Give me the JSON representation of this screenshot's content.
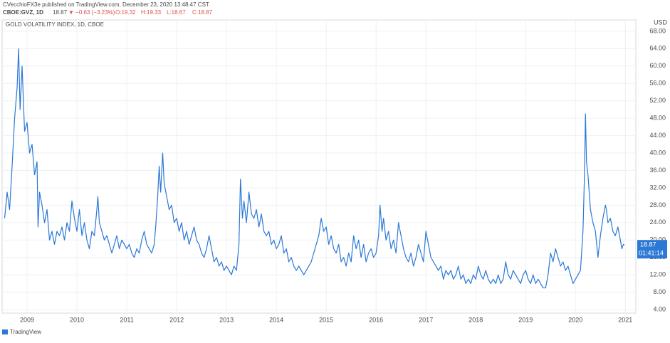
{
  "header": {
    "publisher": "CVecchioFX3e published on TradingView.com, December 23, 2020 13:48:47 CST",
    "symbol": "CBOE:GVZ, 1D",
    "last": "18.87",
    "change": "▼ −0.63 (−3.23%)",
    "open": "O:19.32",
    "high": "H:19.33",
    "low": "L:18.67",
    "close": "C:18.87"
  },
  "footer": {
    "brand": "TradingView"
  },
  "chart_data": {
    "type": "line",
    "title": "GOLD VOLATILITY INDEX, 1D, CBOE",
    "currency": "USD",
    "color": "#2b78d6",
    "grid": true,
    "last_value": 18.87,
    "last_value_label": "18.87",
    "countdown": "01:41:14",
    "xlim": [
      2008.5,
      2021.21
    ],
    "ylim": [
      3.2,
      70.6
    ],
    "xticks": [
      2009,
      2010,
      2011,
      2012,
      2013,
      2014,
      2015,
      2016,
      2017,
      2018,
      2019,
      2020,
      2021
    ],
    "yticks": [
      {
        "value": 4,
        "label": "4.00"
      },
      {
        "value": 8,
        "label": "8.00"
      },
      {
        "value": 12,
        "label": "12.00"
      },
      {
        "value": 16,
        "label": "16.00"
      },
      {
        "value": 20,
        "label": "20.00"
      },
      {
        "value": 24,
        "label": "24.00"
      },
      {
        "value": 28,
        "label": "28.00"
      },
      {
        "value": 32,
        "label": "32.00"
      },
      {
        "value": 36,
        "label": "36.00"
      },
      {
        "value": 40,
        "label": "40.00"
      },
      {
        "value": 44,
        "label": "44.00"
      },
      {
        "value": 48,
        "label": "48.00"
      },
      {
        "value": 52,
        "label": "52.00"
      },
      {
        "value": 56,
        "label": "56.00"
      },
      {
        "value": 60,
        "label": "60.00"
      },
      {
        "value": 64,
        "label": "64.00"
      },
      {
        "value": 68,
        "label": "68.00"
      }
    ],
    "x": [
      2008.55,
      2008.6,
      2008.65,
      2008.7,
      2008.75,
      2008.8,
      2008.83,
      2008.86,
      2008.9,
      2008.95,
      2009.0,
      2009.05,
      2009.1,
      2009.15,
      2009.2,
      2009.22,
      2009.25,
      2009.3,
      2009.35,
      2009.4,
      2009.45,
      2009.5,
      2009.55,
      2009.6,
      2009.65,
      2009.7,
      2009.75,
      2009.8,
      2009.85,
      2009.9,
      2009.95,
      2010.0,
      2010.05,
      2010.1,
      2010.15,
      2010.2,
      2010.25,
      2010.3,
      2010.35,
      2010.4,
      2010.42,
      2010.45,
      2010.5,
      2010.55,
      2010.6,
      2010.65,
      2010.7,
      2010.75,
      2010.8,
      2010.85,
      2010.9,
      2010.95,
      2011.0,
      2011.05,
      2011.1,
      2011.15,
      2011.2,
      2011.25,
      2011.3,
      2011.35,
      2011.4,
      2011.45,
      2011.5,
      2011.55,
      2011.58,
      2011.62,
      2011.65,
      2011.68,
      2011.72,
      2011.75,
      2011.8,
      2011.85,
      2011.9,
      2011.95,
      2012.0,
      2012.05,
      2012.1,
      2012.15,
      2012.2,
      2012.25,
      2012.3,
      2012.35,
      2012.4,
      2012.45,
      2012.5,
      2012.55,
      2012.6,
      2012.65,
      2012.7,
      2012.75,
      2012.8,
      2012.85,
      2012.9,
      2012.95,
      2013.0,
      2013.05,
      2013.1,
      2013.15,
      2013.2,
      2013.25,
      2013.28,
      2013.32,
      2013.35,
      2013.4,
      2013.45,
      2013.5,
      2013.55,
      2013.6,
      2013.65,
      2013.7,
      2013.75,
      2013.8,
      2013.85,
      2013.9,
      2013.95,
      2014.0,
      2014.05,
      2014.1,
      2014.15,
      2014.2,
      2014.25,
      2014.3,
      2014.35,
      2014.4,
      2014.45,
      2014.5,
      2014.55,
      2014.6,
      2014.65,
      2014.7,
      2014.75,
      2014.8,
      2014.85,
      2014.9,
      2014.95,
      2015.0,
      2015.05,
      2015.1,
      2015.15,
      2015.2,
      2015.25,
      2015.3,
      2015.35,
      2015.4,
      2015.45,
      2015.5,
      2015.55,
      2015.6,
      2015.65,
      2015.7,
      2015.75,
      2015.8,
      2015.85,
      2015.9,
      2015.95,
      2016.0,
      2016.05,
      2016.08,
      2016.12,
      2016.15,
      2016.2,
      2016.25,
      2016.3,
      2016.35,
      2016.4,
      2016.45,
      2016.5,
      2016.55,
      2016.6,
      2016.65,
      2016.7,
      2016.75,
      2016.8,
      2016.85,
      2016.9,
      2016.95,
      2017.0,
      2017.05,
      2017.1,
      2017.15,
      2017.2,
      2017.25,
      2017.3,
      2017.35,
      2017.4,
      2017.45,
      2017.5,
      2017.55,
      2017.6,
      2017.65,
      2017.7,
      2017.75,
      2017.8,
      2017.85,
      2017.9,
      2017.95,
      2018.0,
      2018.05,
      2018.1,
      2018.15,
      2018.2,
      2018.25,
      2018.3,
      2018.35,
      2018.4,
      2018.45,
      2018.5,
      2018.55,
      2018.6,
      2018.65,
      2018.7,
      2018.75,
      2018.8,
      2018.85,
      2018.9,
      2018.95,
      2019.0,
      2019.05,
      2019.1,
      2019.15,
      2019.2,
      2019.25,
      2019.3,
      2019.35,
      2019.4,
      2019.45,
      2019.5,
      2019.55,
      2019.6,
      2019.65,
      2019.7,
      2019.75,
      2019.8,
      2019.85,
      2019.9,
      2019.95,
      2020.0,
      2020.05,
      2020.1,
      2020.15,
      2020.18,
      2020.2,
      2020.22,
      2020.25,
      2020.3,
      2020.35,
      2020.4,
      2020.45,
      2020.5,
      2020.55,
      2020.6,
      2020.62,
      2020.65,
      2020.7,
      2020.75,
      2020.8,
      2020.85,
      2020.9,
      2020.93,
      2020.96,
      2020.98
    ],
    "values": [
      25,
      31,
      27,
      37,
      48,
      55,
      64,
      50,
      60,
      45,
      47,
      40,
      42,
      35,
      38,
      23,
      31,
      28,
      24,
      27,
      20,
      22,
      19,
      22,
      21,
      23,
      20,
      24,
      22,
      29,
      25,
      22,
      27,
      21,
      24,
      20,
      18,
      22,
      21,
      27,
      30,
      24,
      22,
      20,
      21,
      19,
      17,
      19,
      21,
      18,
      20,
      19,
      18,
      19,
      17,
      16,
      18,
      17,
      20,
      22,
      19,
      18,
      17,
      19,
      23,
      30,
      37,
      31,
      40,
      33,
      30,
      27,
      28,
      24,
      25,
      22,
      24,
      20,
      22,
      19,
      21,
      23,
      20,
      19,
      17,
      16,
      18,
      21,
      18,
      15,
      16,
      14,
      15,
      13,
      14,
      13,
      12,
      14,
      13,
      19,
      34,
      25,
      29,
      24,
      31,
      26,
      25,
      27,
      23,
      26,
      22,
      21,
      22,
      19,
      20,
      18,
      19,
      21,
      17,
      18,
      15,
      16,
      14,
      13,
      14,
      13,
      12,
      13,
      14,
      15,
      17,
      19,
      21,
      25,
      22,
      23,
      19,
      21,
      18,
      17,
      19,
      15,
      16,
      14,
      17,
      15,
      21,
      18,
      20,
      16,
      19,
      15,
      17,
      18,
      16,
      17,
      21,
      28,
      22,
      25,
      20,
      22,
      18,
      20,
      17,
      24,
      21,
      18,
      16,
      15,
      17,
      14,
      16,
      19,
      17,
      15,
      22,
      19,
      16,
      15,
      14,
      13,
      14,
      11,
      13,
      12,
      13,
      11,
      12,
      14,
      11,
      12,
      10,
      11,
      10,
      12,
      11,
      14,
      12,
      11,
      13,
      11,
      10,
      11,
      10,
      12,
      10,
      11,
      15,
      12,
      11,
      13,
      12,
      11,
      10,
      12,
      13,
      11,
      10,
      12,
      10,
      11,
      10,
      9,
      9,
      12,
      17,
      15,
      18,
      16,
      14,
      15,
      13,
      14,
      12,
      10,
      11,
      12,
      13,
      22,
      35,
      49,
      38,
      35,
      27,
      24,
      22,
      16,
      21,
      25,
      28,
      27,
      24,
      25,
      22,
      21,
      23,
      20,
      18,
      19,
      18.87
    ]
  }
}
